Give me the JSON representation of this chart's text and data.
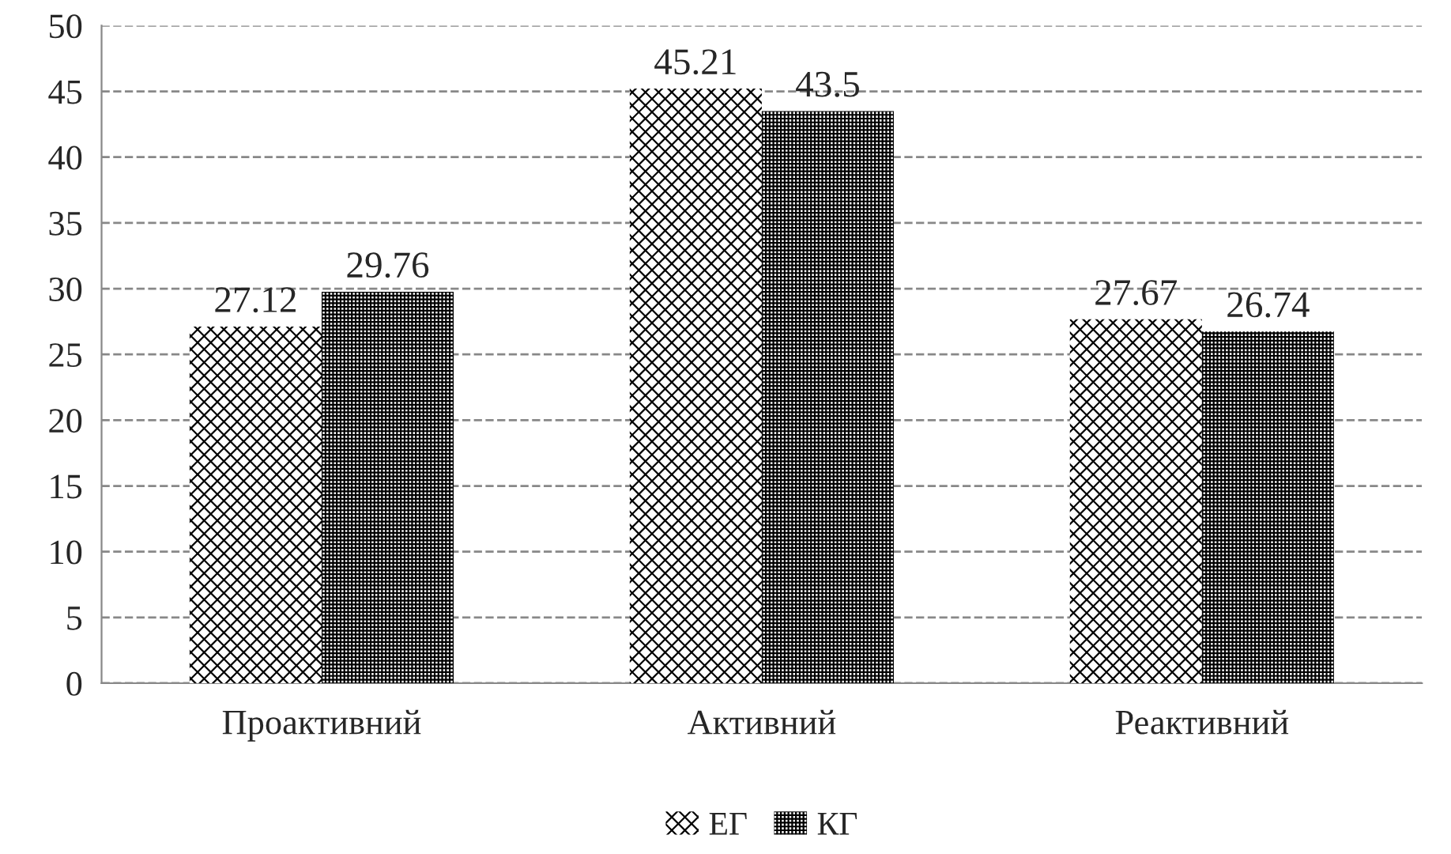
{
  "chart_data": {
    "type": "bar",
    "categories": [
      "Проактивний",
      "Активний",
      "Реактивний"
    ],
    "series": [
      {
        "name": "ЕГ",
        "color": "#000000",
        "values": [
          27.12,
          45.21,
          27.67
        ]
      },
      {
        "name": "КГ",
        "color": "#000000",
        "values": [
          29.76,
          43.5,
          26.74
        ]
      }
    ],
    "ylim": [
      0,
      50
    ],
    "yticks": [
      0,
      5,
      10,
      15,
      20,
      25,
      30,
      35,
      40,
      45,
      50
    ],
    "grid": "y",
    "legend": "bottom",
    "data_labels": true
  }
}
